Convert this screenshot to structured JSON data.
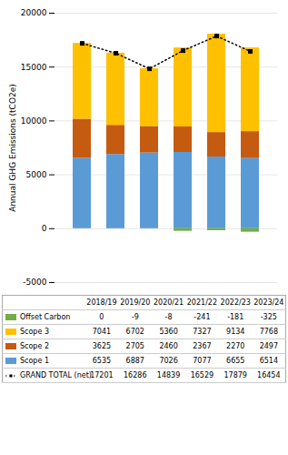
{
  "chart_data": {
    "type": "bar",
    "stacked": true,
    "categories": [
      "2018/19",
      "2019/20",
      "2020/21",
      "2021/22",
      "2022/23",
      "2023/24"
    ],
    "series": [
      {
        "name": "Scope 1",
        "color": "#5b9bd5",
        "values": [
          6535,
          6887,
          7026,
          7077,
          6655,
          6514
        ]
      },
      {
        "name": "Scope 2",
        "color": "#c55a11",
        "values": [
          3625,
          2705,
          2460,
          2367,
          2270,
          2497
        ]
      },
      {
        "name": "Scope 3",
        "color": "#ffc000",
        "values": [
          7041,
          6702,
          5360,
          7327,
          9134,
          7768
        ]
      },
      {
        "name": "Offset Carbon",
        "color": "#70ad47",
        "values": [
          0,
          -9,
          -8,
          -241,
          -181,
          -325
        ]
      },
      {
        "name": "GRAND TOTAL (net)",
        "type": "line",
        "color": "#000000",
        "line_style": "dotted",
        "marker": "square",
        "values": [
          17201,
          16286,
          14839,
          16529,
          17879,
          16454
        ]
      }
    ],
    "ylabel": "Annual GHG Emissions (tCO2e)",
    "ylim": [
      -5000,
      20000
    ],
    "yticks": [
      -5000,
      0,
      5000,
      10000,
      15000,
      20000
    ],
    "grid": true,
    "data_labels": true
  }
}
